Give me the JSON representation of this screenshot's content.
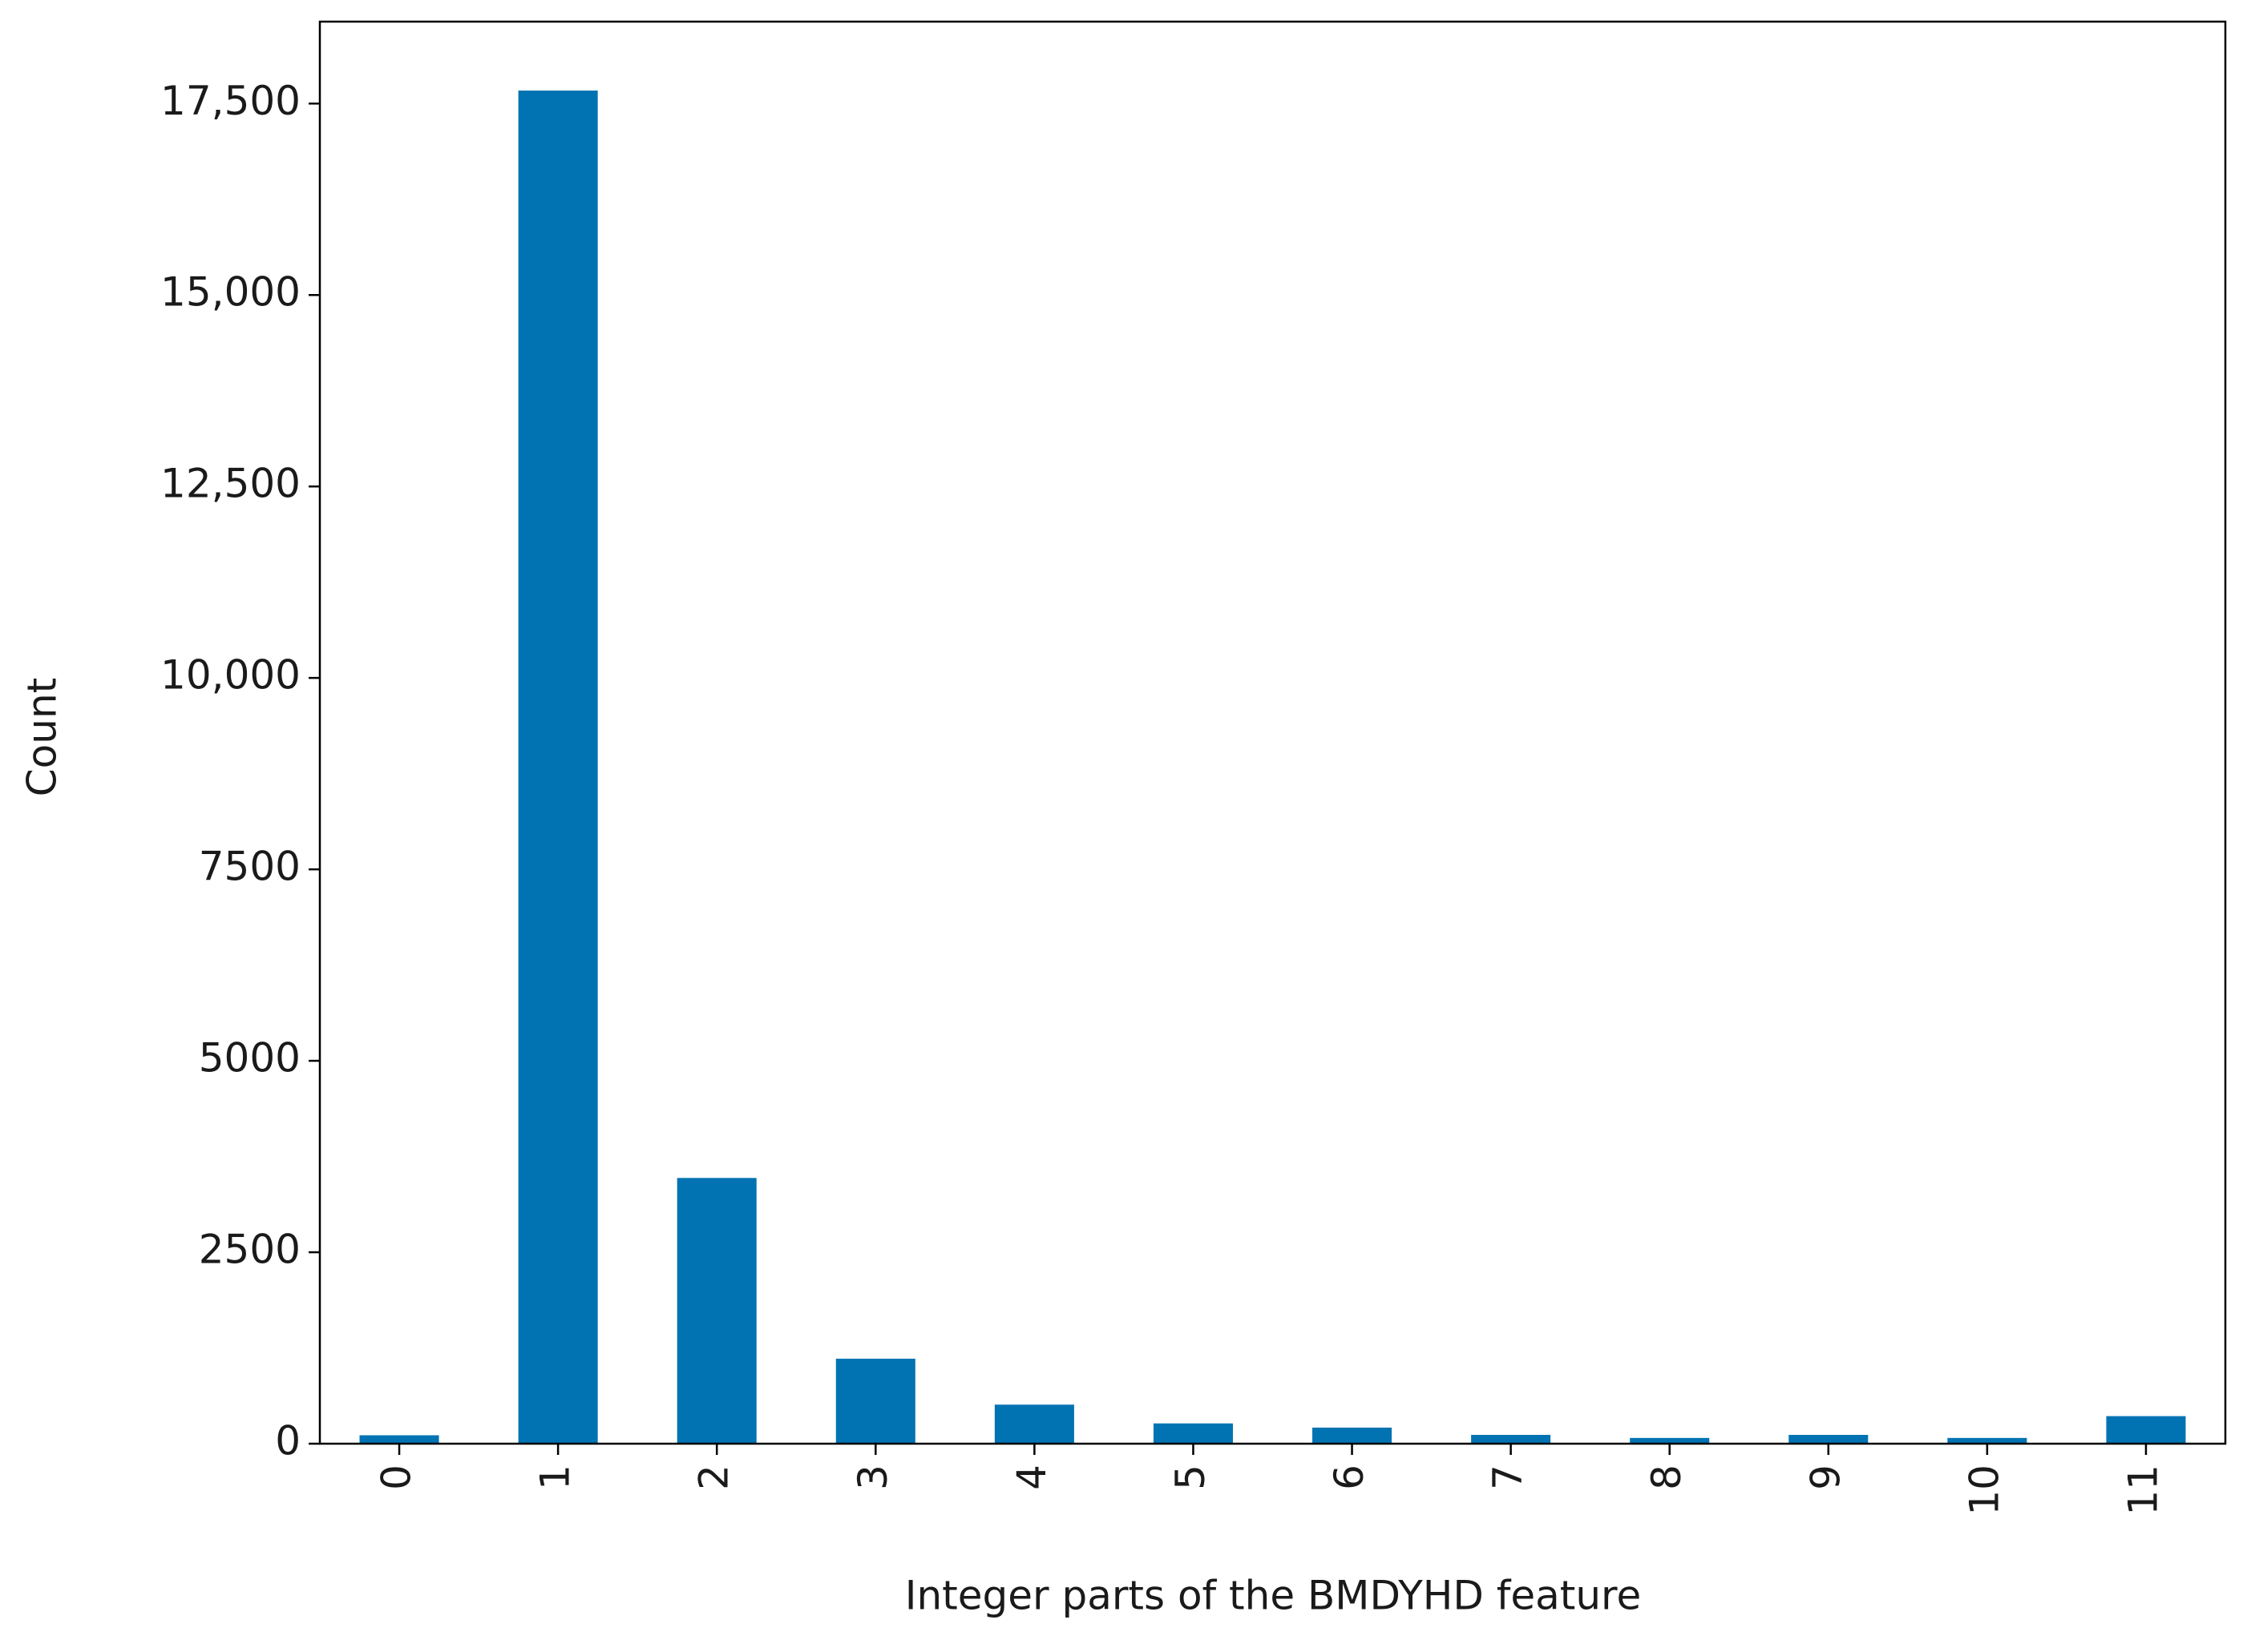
{
  "chart_data": {
    "type": "bar",
    "x_label": "Integer parts of the BMDYHD feature",
    "y_label": "Count",
    "categories": [
      "0",
      "1",
      "2",
      "3",
      "4",
      "5",
      "6",
      "7",
      "8",
      "9",
      "10",
      "11"
    ],
    "values": [
      110,
      17670,
      3470,
      1110,
      510,
      265,
      210,
      115,
      75,
      115,
      75,
      360
    ],
    "color": "#0173b2",
    "ylim": [
      0,
      18570
    ],
    "yticks": [
      0,
      2500,
      5000,
      7500,
      {
        "value": 10000,
        "label": "10,000"
      },
      {
        "value": 12500,
        "label": "12,500"
      },
      {
        "value": 15000,
        "label": "15,000"
      },
      {
        "value": 17500,
        "label": "17,500"
      }
    ],
    "grid": false
  }
}
